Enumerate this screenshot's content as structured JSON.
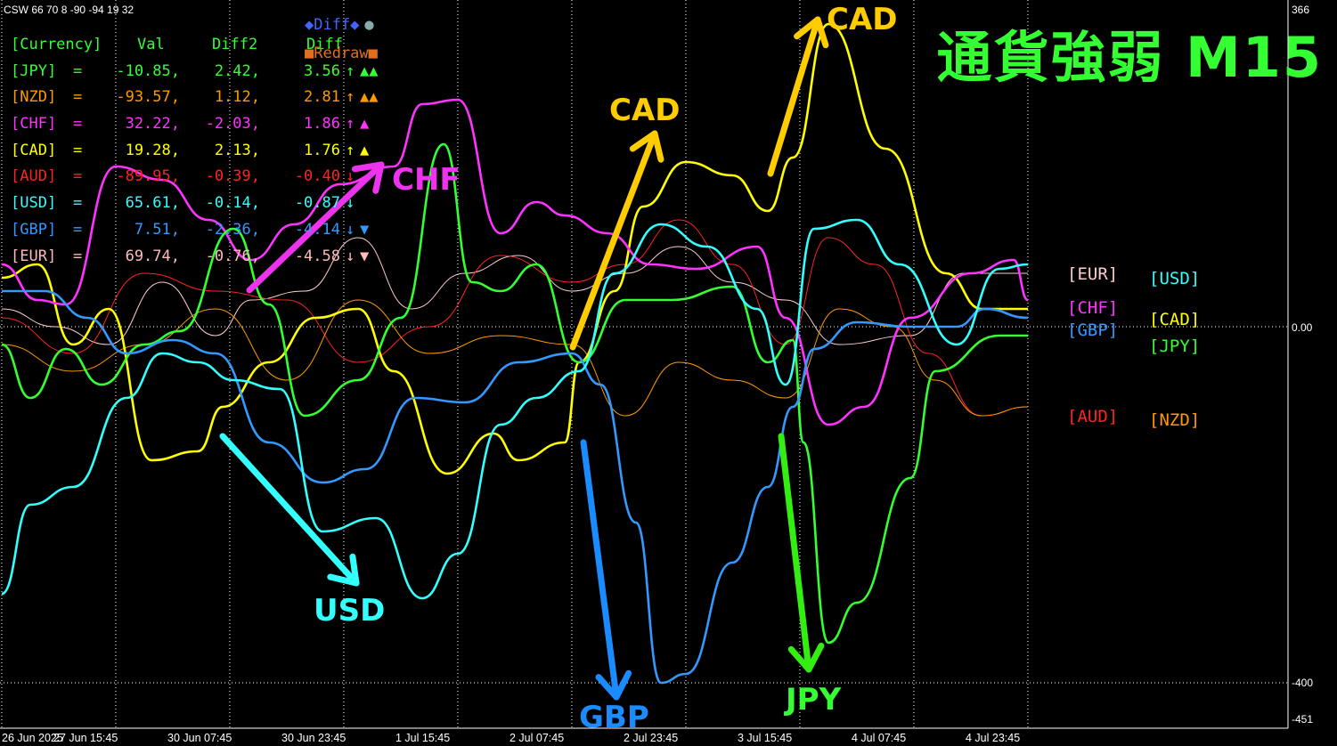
{
  "header": "CSW 66 70 8 -90 -94 19 32",
  "title": "通貨強弱  M15",
  "table": {
    "headers": [
      "[Currency]",
      "Val",
      "Diff2",
      "Diff"
    ],
    "rows": [
      {
        "cur": "[JPY]",
        "eq": "=",
        "val": "-10.85,",
        "d2": "2.42,",
        "d": "3.56",
        "arrow": "↑",
        "tri": "▲▲",
        "color": "#33ff33"
      },
      {
        "cur": "[NZD]",
        "eq": "=",
        "val": "-93.57,",
        "d2": "1.12,",
        "d": "2.81",
        "arrow": "↑",
        "tri": "▲▲",
        "color": "#ff9900"
      },
      {
        "cur": "[CHF]",
        "eq": "=",
        "val": "32.22,",
        "d2": "-2.03,",
        "d": "1.86",
        "arrow": "↑",
        "tri": "▲",
        "color": "#ff33ff"
      },
      {
        "cur": "[CAD]",
        "eq": "=",
        "val": "19.28,",
        "d2": "2.13,",
        "d": "1.76",
        "arrow": "↑",
        "tri": "▲",
        "color": "#ffff00"
      },
      {
        "cur": "[AUD]",
        "eq": "=",
        "val": "-89.95,",
        "d2": "-0.39,",
        "d": "-0.40",
        "arrow": "↓",
        "tri": "",
        "color": "#ff2222"
      },
      {
        "cur": "[USD]",
        "eq": "=",
        "val": "65.61,",
        "d2": "-0.14,",
        "d": "-0.87",
        "arrow": "↓",
        "tri": "",
        "color": "#33ffff"
      },
      {
        "cur": "[GBP]",
        "eq": "=",
        "val": "7.51,",
        "d2": "-2.36,",
        "d": "-4.14",
        "arrow": "↓",
        "tri": "▼",
        "color": "#3399ff"
      },
      {
        "cur": "[EUR]",
        "eq": "=",
        "val": "69.74,",
        "d2": "-0.76,",
        "d": "-4.58",
        "arrow": "↓",
        "tri": "▼",
        "color": "#ffbbbb"
      }
    ]
  },
  "buttons": {
    "diff": "◆Diff◆",
    "diff_dot": "●",
    "redraw": "■Redraw■"
  },
  "right_labels": [
    {
      "text": "[EUR]",
      "color": "#ffcccc"
    },
    {
      "text": "[USD]",
      "color": "#33ffff"
    },
    {
      "text": "[CHF]",
      "color": "#ff33ff"
    },
    {
      "text": "[CAD]",
      "color": "#ffff00"
    },
    {
      "text": "[GBP]",
      "color": "#3399ff"
    },
    {
      "text": "[JPY]",
      "color": "#33ff33"
    },
    {
      "text": "[AUD]",
      "color": "#ff2222"
    },
    {
      "text": "[NZD]",
      "color": "#ff9900"
    }
  ],
  "annotations": [
    {
      "text": "CAD",
      "color": "#ffcc00"
    },
    {
      "text": "CAD",
      "color": "#ffcc00"
    },
    {
      "text": "CHF",
      "color": "#ee33ee"
    },
    {
      "text": "USD",
      "color": "#33ffff"
    },
    {
      "text": "GBP",
      "color": "#1a8cff"
    },
    {
      "text": "JPY",
      "color": "#33ff33"
    }
  ],
  "chart_data": {
    "type": "line",
    "ylim": [
      -451,
      366
    ],
    "y_ticks": [
      "366",
      "0.00",
      "-400",
      "-451"
    ],
    "x_ticks": [
      "26 Jun 2025",
      "27 Jun 15:45",
      "30 Jun 07:45",
      "30 Jun 23:45",
      "1 Jul 15:45",
      "2 Jul 07:45",
      "2 Jul 23:45",
      "3 Jul 15:45",
      "4 Jul 07:45",
      "4 Jul 23:45"
    ],
    "x_index": [
      0,
      32,
      64,
      96,
      128,
      160,
      192,
      224,
      256,
      288
    ],
    "grid": true,
    "series": [
      {
        "name": "CAD",
        "color": "#ffff00",
        "width": 2.6,
        "points": [
          [
            0,
            55
          ],
          [
            10,
            70
          ],
          [
            20,
            -20
          ],
          [
            30,
            20
          ],
          [
            42,
            -150
          ],
          [
            55,
            -140
          ],
          [
            62,
            -90
          ],
          [
            75,
            -40
          ],
          [
            88,
            10
          ],
          [
            100,
            20
          ],
          [
            110,
            -50
          ],
          [
            125,
            -165
          ],
          [
            138,
            -120
          ],
          [
            145,
            -150
          ],
          [
            158,
            -130
          ],
          [
            162,
            -40
          ],
          [
            172,
            40
          ],
          [
            180,
            135
          ],
          [
            192,
            185
          ],
          [
            205,
            170
          ],
          [
            215,
            130
          ],
          [
            222,
            190
          ],
          [
            232,
            340
          ],
          [
            248,
            200
          ],
          [
            265,
            60
          ],
          [
            275,
            20
          ],
          [
            288,
            20
          ]
        ]
      },
      {
        "name": "CHF",
        "color": "#ff33ff",
        "width": 2.6,
        "points": [
          [
            0,
            70
          ],
          [
            10,
            30
          ],
          [
            18,
            25
          ],
          [
            32,
            180
          ],
          [
            45,
            165
          ],
          [
            58,
            120
          ],
          [
            70,
            75
          ],
          [
            82,
            115
          ],
          [
            95,
            160
          ],
          [
            110,
            180
          ],
          [
            118,
            250
          ],
          [
            128,
            255
          ],
          [
            140,
            105
          ],
          [
            150,
            140
          ],
          [
            158,
            125
          ],
          [
            170,
            105
          ],
          [
            182,
            70
          ],
          [
            195,
            65
          ],
          [
            212,
            90
          ],
          [
            220,
            10
          ],
          [
            232,
            -110
          ],
          [
            242,
            -90
          ],
          [
            255,
            10
          ],
          [
            272,
            60
          ],
          [
            284,
            75
          ],
          [
            288,
            30
          ]
        ]
      },
      {
        "name": "JPY",
        "color": "#33ff33",
        "width": 2.6,
        "points": [
          [
            0,
            -20
          ],
          [
            8,
            -80
          ],
          [
            18,
            -25
          ],
          [
            28,
            -65
          ],
          [
            40,
            -20
          ],
          [
            50,
            -5
          ],
          [
            65,
            110
          ],
          [
            75,
            25
          ],
          [
            85,
            -100
          ],
          [
            100,
            -60
          ],
          [
            112,
            10
          ],
          [
            124,
            205
          ],
          [
            132,
            50
          ],
          [
            140,
            40
          ],
          [
            150,
            70
          ],
          [
            162,
            -40
          ],
          [
            175,
            30
          ],
          [
            188,
            30
          ],
          [
            205,
            45
          ],
          [
            215,
            -40
          ],
          [
            222,
            -15
          ],
          [
            225,
            -130
          ],
          [
            232,
            -355
          ],
          [
            240,
            -310
          ],
          [
            255,
            -170
          ],
          [
            262,
            -50
          ],
          [
            280,
            -10
          ],
          [
            288,
            -10
          ]
        ]
      },
      {
        "name": "GBP",
        "color": "#3399ff",
        "width": 2.6,
        "points": [
          [
            0,
            40
          ],
          [
            12,
            40
          ],
          [
            24,
            10
          ],
          [
            35,
            -30
          ],
          [
            48,
            -15
          ],
          [
            60,
            -30
          ],
          [
            75,
            -130
          ],
          [
            90,
            -175
          ],
          [
            102,
            -160
          ],
          [
            116,
            -80
          ],
          [
            130,
            -85
          ],
          [
            145,
            -40
          ],
          [
            160,
            -30
          ],
          [
            168,
            -65
          ],
          [
            178,
            -220
          ],
          [
            185,
            -400
          ],
          [
            192,
            -390
          ],
          [
            205,
            -265
          ],
          [
            215,
            -180
          ],
          [
            222,
            -90
          ],
          [
            228,
            -25
          ],
          [
            240,
            5
          ],
          [
            255,
            0
          ],
          [
            268,
            0
          ],
          [
            276,
            20
          ],
          [
            288,
            10
          ]
        ]
      },
      {
        "name": "USD",
        "color": "#33ffff",
        "width": 2.6,
        "points": [
          [
            0,
            -300
          ],
          [
            8,
            -200
          ],
          [
            20,
            -180
          ],
          [
            35,
            -80
          ],
          [
            45,
            -30
          ],
          [
            55,
            -40
          ],
          [
            65,
            -60
          ],
          [
            78,
            -70
          ],
          [
            90,
            -230
          ],
          [
            105,
            -215
          ],
          [
            118,
            -305
          ],
          [
            128,
            -255
          ],
          [
            140,
            -110
          ],
          [
            150,
            -80
          ],
          [
            162,
            -50
          ],
          [
            172,
            60
          ],
          [
            185,
            115
          ],
          [
            198,
            90
          ],
          [
            212,
            20
          ],
          [
            220,
            -65
          ],
          [
            228,
            110
          ],
          [
            240,
            120
          ],
          [
            252,
            70
          ],
          [
            268,
            -20
          ],
          [
            280,
            65
          ],
          [
            288,
            70
          ]
        ]
      },
      {
        "name": "EUR",
        "color": "#ffcccc",
        "width": 1,
        "points": [
          [
            0,
            20
          ],
          [
            15,
            0
          ],
          [
            30,
            -20
          ],
          [
            45,
            50
          ],
          [
            60,
            -10
          ],
          [
            70,
            30
          ],
          [
            85,
            40
          ],
          [
            100,
            100
          ],
          [
            115,
            20
          ],
          [
            130,
            60
          ],
          [
            145,
            80
          ],
          [
            160,
            40
          ],
          [
            175,
            60
          ],
          [
            190,
            90
          ],
          [
            205,
            50
          ],
          [
            220,
            30
          ],
          [
            235,
            -20
          ],
          [
            255,
            -10
          ],
          [
            270,
            60
          ],
          [
            288,
            60
          ]
        ]
      },
      {
        "name": "AUD",
        "color": "#ff2222",
        "width": 1,
        "points": [
          [
            0,
            10
          ],
          [
            20,
            -30
          ],
          [
            40,
            60
          ],
          [
            60,
            40
          ],
          [
            80,
            30
          ],
          [
            100,
            -40
          ],
          [
            120,
            0
          ],
          [
            140,
            80
          ],
          [
            160,
            50
          ],
          [
            175,
            70
          ],
          [
            190,
            120
          ],
          [
            205,
            70
          ],
          [
            220,
            -20
          ],
          [
            232,
            100
          ],
          [
            245,
            70
          ],
          [
            260,
            -30
          ],
          [
            275,
            -100
          ],
          [
            288,
            -90
          ]
        ]
      },
      {
        "name": "NZD",
        "color": "#ff9900",
        "width": 1,
        "points": [
          [
            0,
            -20
          ],
          [
            20,
            -50
          ],
          [
            40,
            -20
          ],
          [
            60,
            20
          ],
          [
            80,
            -60
          ],
          [
            100,
            30
          ],
          [
            120,
            -30
          ],
          [
            140,
            -10
          ],
          [
            160,
            -20
          ],
          [
            175,
            -100
          ],
          [
            190,
            -40
          ],
          [
            205,
            -60
          ],
          [
            220,
            -80
          ],
          [
            235,
            20
          ],
          [
            250,
            0
          ],
          [
            262,
            -60
          ],
          [
            275,
            -100
          ],
          [
            288,
            -90
          ]
        ]
      }
    ]
  }
}
